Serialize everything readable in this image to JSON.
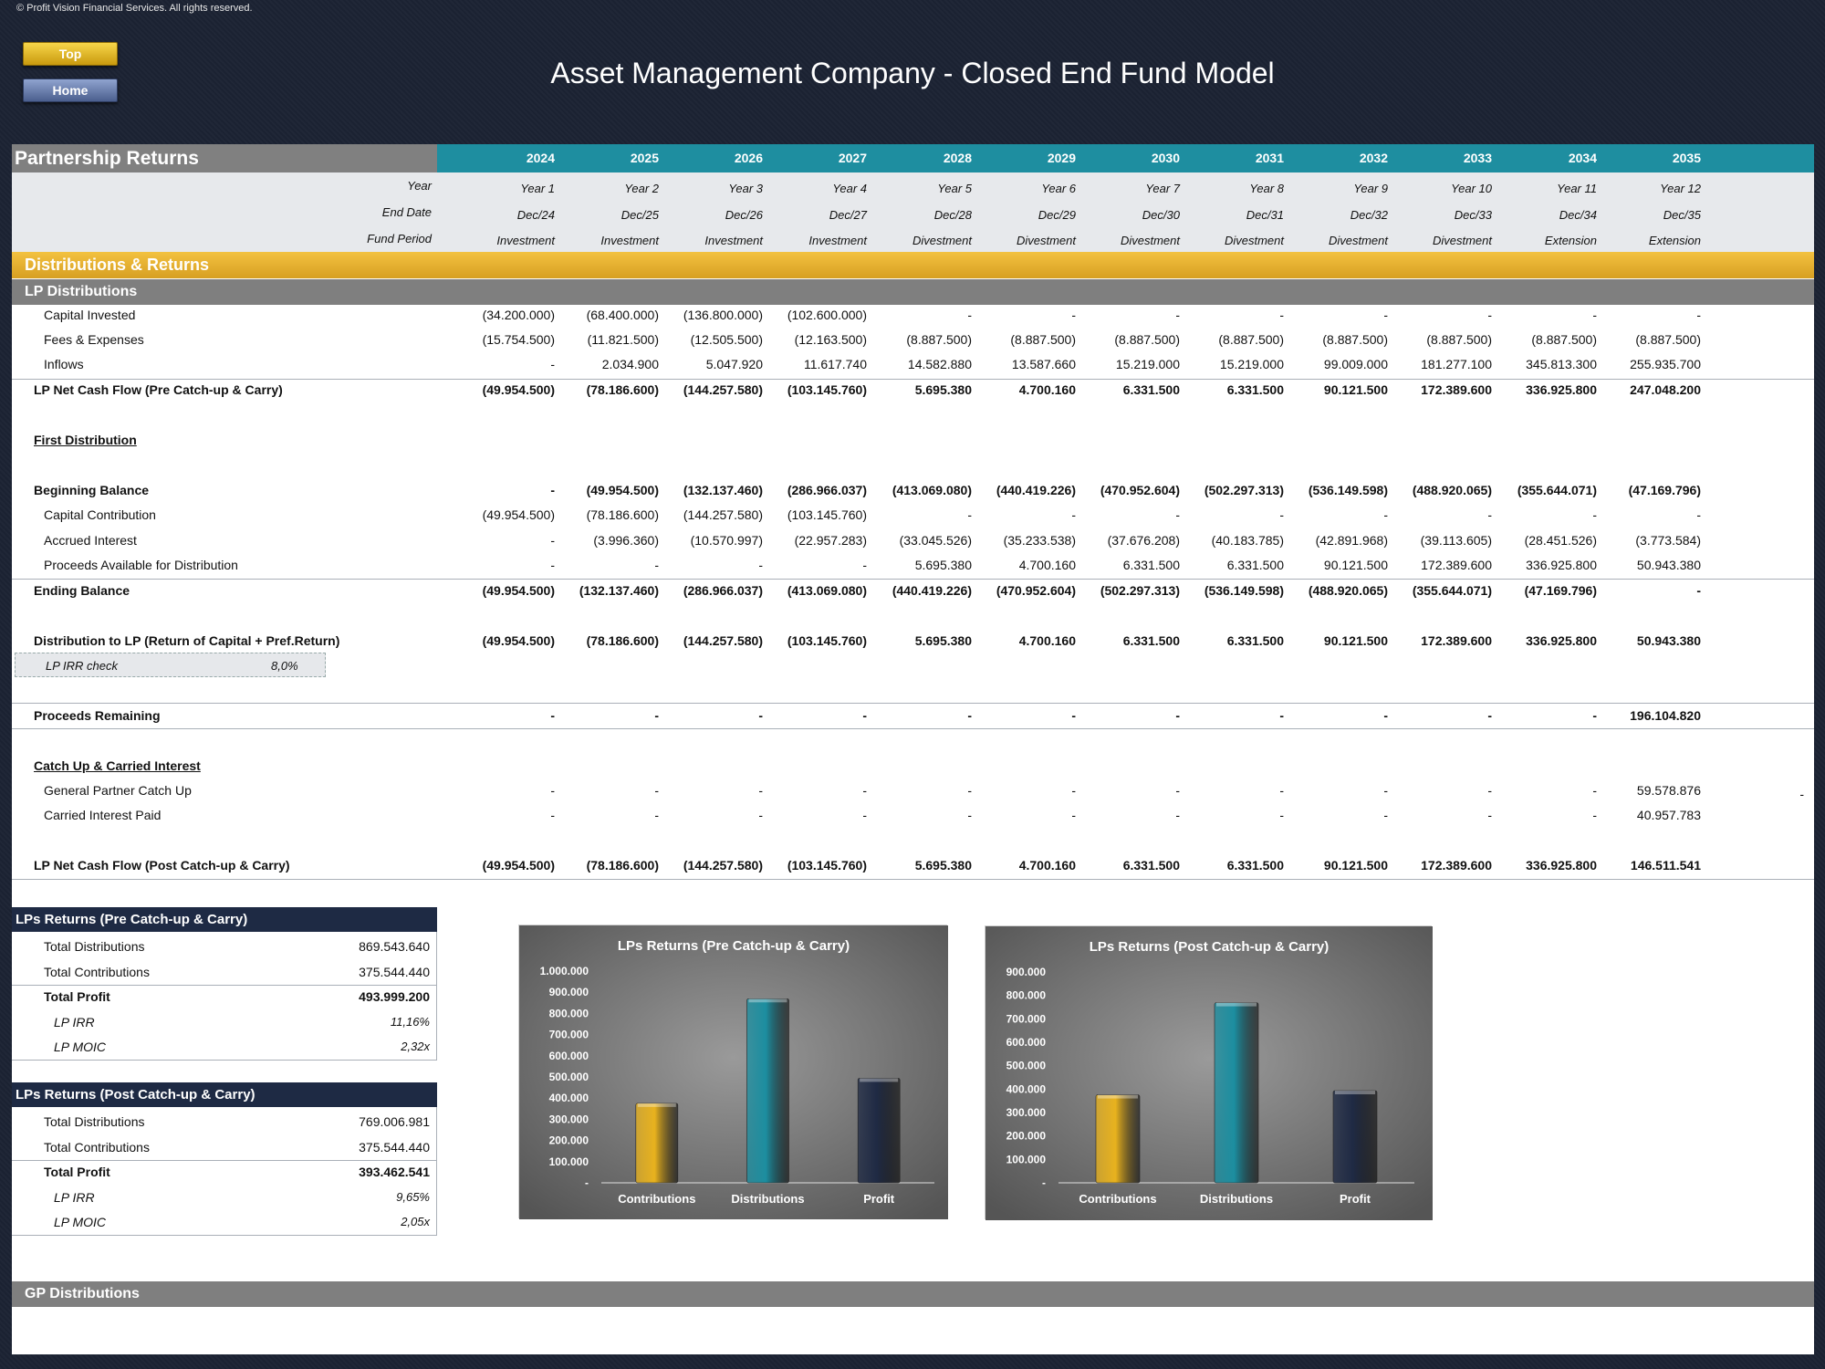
{
  "copyright": "© Profit Vision Financial Services. All rights reserved.",
  "nav": {
    "top_label": "Top",
    "home_label": "Home"
  },
  "page_title": "Asset Management Company - Closed End Fund Model",
  "sheet_title": "Partnership Returns",
  "timeline": {
    "years": [
      "2024",
      "2025",
      "2026",
      "2027",
      "2028",
      "2029",
      "2030",
      "2031",
      "2032",
      "2033",
      "2034",
      "2035"
    ],
    "year_label": "Year",
    "end_date_label": "End Date",
    "fund_period_label": "Fund Period",
    "year_nums": [
      "Year 1",
      "Year 2",
      "Year 3",
      "Year 4",
      "Year 5",
      "Year 6",
      "Year 7",
      "Year 8",
      "Year 9",
      "Year 10",
      "Year 11",
      "Year 12"
    ],
    "end_dates": [
      "Dec/24",
      "Dec/25",
      "Dec/26",
      "Dec/27",
      "Dec/28",
      "Dec/29",
      "Dec/30",
      "Dec/31",
      "Dec/32",
      "Dec/33",
      "Dec/34",
      "Dec/35"
    ],
    "periods": [
      "Investment",
      "Investment",
      "Investment",
      "Investment",
      "Divestment",
      "Divestment",
      "Divestment",
      "Divestment",
      "Divestment",
      "Divestment",
      "Extension",
      "Extension"
    ]
  },
  "section_title": "Distributions & Returns",
  "lp_distributions_title": "LP Distributions",
  "gp_distributions_title": "GP Distributions",
  "rows": [
    {
      "label": "Capital Invested",
      "values": [
        "(34.200.000)",
        "(68.400.000)",
        "(136.800.000)",
        "(102.600.000)",
        "-",
        "-",
        "-",
        "-",
        "-",
        "-",
        "-",
        "-"
      ]
    },
    {
      "label": "Fees & Expenses",
      "values": [
        "(15.754.500)",
        "(11.821.500)",
        "(12.505.500)",
        "(12.163.500)",
        "(8.887.500)",
        "(8.887.500)",
        "(8.887.500)",
        "(8.887.500)",
        "(8.887.500)",
        "(8.887.500)",
        "(8.887.500)",
        "(8.887.500)"
      ]
    },
    {
      "label": "Inflows",
      "values": [
        "-",
        "2.034.900",
        "5.047.920",
        "11.617.740",
        "14.582.880",
        "13.587.660",
        "15.219.000",
        "15.219.000",
        "99.009.000",
        "181.277.100",
        "345.813.300",
        "255.935.700"
      ]
    },
    {
      "label": "LP Net Cash Flow (Pre Catch-up & Carry)",
      "values": [
        "(49.954.500)",
        "(78.186.600)",
        "(144.257.580)",
        "(103.145.760)",
        "5.695.380",
        "4.700.160",
        "6.331.500",
        "6.331.500",
        "90.121.500",
        "172.389.600",
        "336.925.800",
        "247.048.200"
      ]
    },
    {
      "label": "First Distribution",
      "values": []
    },
    {
      "label": "Beginning Balance",
      "values": [
        "-",
        "(49.954.500)",
        "(132.137.460)",
        "(286.966.037)",
        "(413.069.080)",
        "(440.419.226)",
        "(470.952.604)",
        "(502.297.313)",
        "(536.149.598)",
        "(488.920.065)",
        "(355.644.071)",
        "(47.169.796)"
      ]
    },
    {
      "label": "Capital Contribution",
      "values": [
        "(49.954.500)",
        "(78.186.600)",
        "(144.257.580)",
        "(103.145.760)",
        "-",
        "-",
        "-",
        "-",
        "-",
        "-",
        "-",
        "-"
      ]
    },
    {
      "label": "Accrued Interest",
      "values": [
        "-",
        "(3.996.360)",
        "(10.570.997)",
        "(22.957.283)",
        "(33.045.526)",
        "(35.233.538)",
        "(37.676.208)",
        "(40.183.785)",
        "(42.891.968)",
        "(39.113.605)",
        "(28.451.526)",
        "(3.773.584)"
      ]
    },
    {
      "label": "Proceeds Available for Distribution",
      "values": [
        "-",
        "-",
        "-",
        "-",
        "5.695.380",
        "4.700.160",
        "6.331.500",
        "6.331.500",
        "90.121.500",
        "172.389.600",
        "336.925.800",
        "50.943.380"
      ]
    },
    {
      "label": "Ending Balance",
      "values": [
        "(49.954.500)",
        "(132.137.460)",
        "(286.966.037)",
        "(413.069.080)",
        "(440.419.226)",
        "(470.952.604)",
        "(502.297.313)",
        "(536.149.598)",
        "(488.920.065)",
        "(355.644.071)",
        "(47.169.796)",
        "-"
      ]
    },
    {
      "label": "Distribution to LP (Return of Capital + Pref.Return)",
      "values": [
        "(49.954.500)",
        "(78.186.600)",
        "(144.257.580)",
        "(103.145.760)",
        "5.695.380",
        "4.700.160",
        "6.331.500",
        "6.331.500",
        "90.121.500",
        "172.389.600",
        "336.925.800",
        "50.943.380"
      ]
    },
    {
      "label": "Proceeds Remaining",
      "values": [
        "-",
        "-",
        "-",
        "-",
        "-",
        "-",
        "-",
        "-",
        "-",
        "-",
        "-",
        "196.104.820"
      ]
    },
    {
      "label": "Catch Up & Carried Interest",
      "values": []
    },
    {
      "label": "General Partner Catch Up",
      "values": [
        "-",
        "-",
        "-",
        "-",
        "-",
        "-",
        "-",
        "-",
        "-",
        "-",
        "-",
        "59.578.876"
      ]
    },
    {
      "label": "Carried Interest Paid",
      "values": [
        "-",
        "-",
        "-",
        "-",
        "-",
        "-",
        "-",
        "-",
        "-",
        "-",
        "-",
        "40.957.783"
      ]
    },
    {
      "label": "LP Net Cash Flow (Post Catch-up & Carry)",
      "values": [
        "(49.954.500)",
        "(78.186.600)",
        "(144.257.580)",
        "(103.145.760)",
        "5.695.380",
        "4.700.160",
        "6.331.500",
        "6.331.500",
        "90.121.500",
        "172.389.600",
        "336.925.800",
        "146.511.541"
      ]
    }
  ],
  "stray_dash": "-",
  "irr_check": {
    "label": "LP IRR check",
    "value": "8,0%"
  },
  "returns_pre": {
    "title": "LPs Returns (Pre Catch-up & Carry)",
    "items": [
      {
        "label": "Total Distributions",
        "value": "869.543.640"
      },
      {
        "label": "Total Contributions",
        "value": "375.544.440"
      },
      {
        "label": "Total Profit",
        "value": "493.999.200"
      },
      {
        "label": "LP IRR",
        "value": "11,16%"
      },
      {
        "label": "LP MOIC",
        "value": "2,32x"
      }
    ]
  },
  "returns_post": {
    "title": "LPs Returns (Post Catch-up & Carry)",
    "items": [
      {
        "label": "Total Distributions",
        "value": "769.006.981"
      },
      {
        "label": "Total Contributions",
        "value": "375.544.440"
      },
      {
        "label": "Total Profit",
        "value": "393.462.541"
      },
      {
        "label": "LP IRR",
        "value": "9,65%"
      },
      {
        "label": "LP MOIC",
        "value": "2,05x"
      }
    ]
  },
  "colors": {
    "contributions": "#e8b21e",
    "distributions": "#1c8ea0",
    "profit": "#1f2a44",
    "teal_header": "#1e8ea0",
    "gold_header": "#e5ad2c"
  },
  "chart_data": [
    {
      "type": "bar",
      "title": "LPs Returns (Pre Catch-up & Carry)",
      "categories": [
        "Contributions",
        "Distributions",
        "Profit"
      ],
      "values": [
        375544440,
        869543640,
        493999200
      ],
      "ylim": [
        0,
        1000000000
      ],
      "yticks": [
        "-",
        "100.000",
        "200.000",
        "300.000",
        "400.000",
        "500.000",
        "600.000",
        "700.000",
        "800.000",
        "900.000",
        "1.000.000"
      ],
      "grid": false,
      "legend": "none"
    },
    {
      "type": "bar",
      "title": "LPs Returns (Post Catch-up & Carry)",
      "categories": [
        "Contributions",
        "Distributions",
        "Profit"
      ],
      "values": [
        375544440,
        769006981,
        393462541
      ],
      "ylim": [
        0,
        900000000
      ],
      "yticks": [
        "-",
        "100.000",
        "200.000",
        "300.000",
        "400.000",
        "500.000",
        "600.000",
        "700.000",
        "800.000",
        "900.000"
      ],
      "grid": false,
      "legend": "none"
    }
  ]
}
